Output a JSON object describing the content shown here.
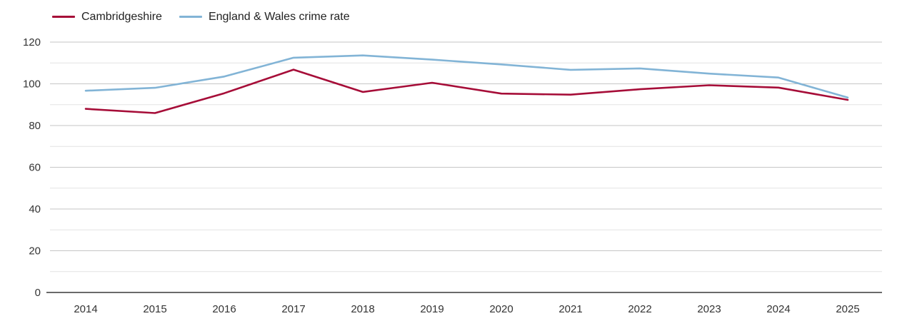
{
  "legend": {
    "items": [
      {
        "label": "Cambridgeshire",
        "color": "#a60d38"
      },
      {
        "label": "England & Wales crime rate",
        "color": "#82b4d6"
      }
    ]
  },
  "chart_data": {
    "type": "line",
    "title": "",
    "xlabel": "",
    "ylabel": "",
    "x": [
      2014,
      2015,
      2016,
      2017,
      2018,
      2019,
      2020,
      2021,
      2022,
      2023,
      2024,
      2025
    ],
    "series": [
      {
        "name": "Cambridgeshire",
        "color": "#a60d38",
        "values": [
          88.0,
          86.0,
          95.5,
          106.8,
          96.1,
          100.5,
          95.3,
          94.8,
          97.4,
          99.3,
          98.2,
          92.3
        ]
      },
      {
        "name": "England & Wales crime rate",
        "color": "#82b4d6",
        "values": [
          96.7,
          98.1,
          103.5,
          112.5,
          113.6,
          111.6,
          109.3,
          106.7,
          107.4,
          104.9,
          103.0,
          93.4
        ]
      }
    ],
    "ylim": [
      0,
      120
    ],
    "ytick_labels": [
      "0",
      "20",
      "40",
      "60",
      "80",
      "100",
      "120"
    ],
    "grid": true,
    "grid_interval": 10,
    "legend_position": "top-left"
  },
  "colors": {
    "grid_minor": "#e4e4e4",
    "grid_major": "#c6c6c6",
    "axis_line": "#383838",
    "tick_text": "#333333"
  }
}
